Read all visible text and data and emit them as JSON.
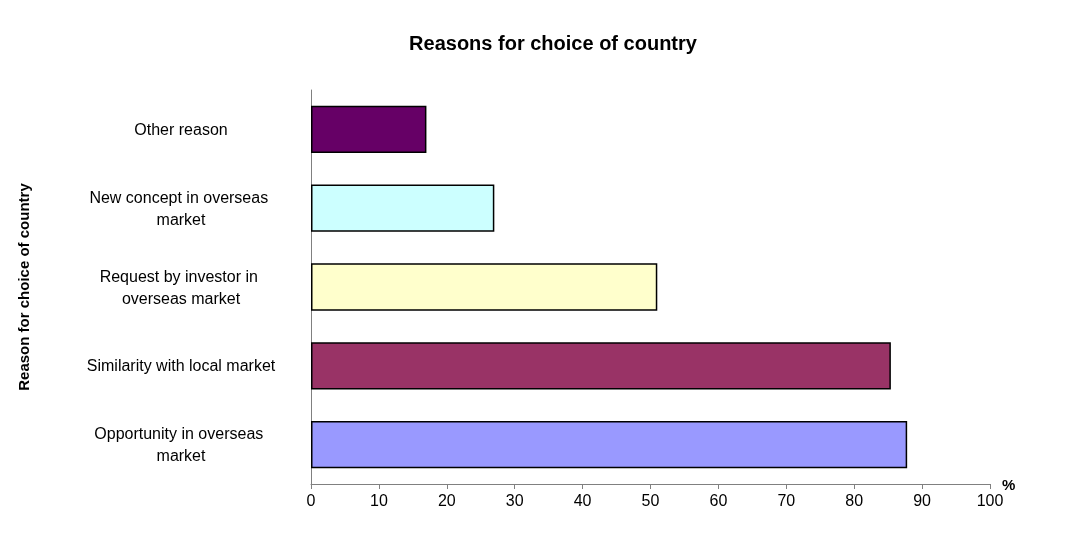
{
  "chart_data": {
    "type": "bar",
    "orientation": "horizontal",
    "title": "Reasons for choice of country",
    "xlabel": "%",
    "ylabel": "Reason for choice of country",
    "categories": [
      "Other reason",
      "New concept in overseas market",
      "Request by investor in overseas market",
      "Similarity with local market",
      "Opportunity in overseas market"
    ],
    "values": [
      17,
      27,
      51,
      85.4,
      87.8
    ],
    "colors": [
      "#660066",
      "#ccffff",
      "#ffffcc",
      "#993366",
      "#9999ff"
    ],
    "xlim": [
      0,
      100
    ],
    "xticks": [
      0,
      10,
      20,
      30,
      40,
      50,
      60,
      70,
      80,
      90,
      100
    ],
    "grid": false
  }
}
